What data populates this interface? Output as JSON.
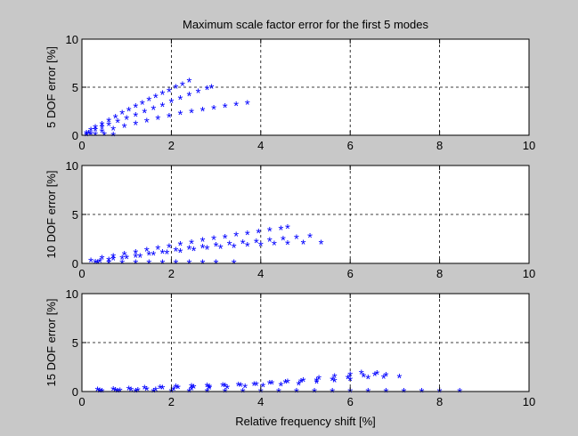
{
  "title": "Maximum scale factor error for the first 5 modes",
  "xlabel": "Relative frequency shift [%]",
  "marker_color": "#0000ff",
  "background_color": "#c8c8c8",
  "axes_color": "#ffffff",
  "chart_data": [
    {
      "type": "scatter",
      "marker": "*",
      "ylabel": "5 DOF error [%]",
      "xlim": [
        0,
        10
      ],
      "ylim": [
        0,
        10
      ],
      "xticks": [
        0,
        2,
        4,
        6,
        8,
        10
      ],
      "yticks": [
        0,
        5,
        10
      ],
      "grid": true,
      "points": [
        [
          0.1,
          0.2
        ],
        [
          0.2,
          0.5
        ],
        [
          0.3,
          0.8
        ],
        [
          0.45,
          1.1
        ],
        [
          0.6,
          1.5
        ],
        [
          0.75,
          1.85
        ],
        [
          0.9,
          2.25
        ],
        [
          1.05,
          2.6
        ],
        [
          1.2,
          2.95
        ],
        [
          1.35,
          3.3
        ],
        [
          1.5,
          3.65
        ],
        [
          1.65,
          4.0
        ],
        [
          1.8,
          4.3
        ],
        [
          1.95,
          4.6
        ],
        [
          2.1,
          4.95
        ],
        [
          2.25,
          5.25
        ],
        [
          2.4,
          5.6
        ],
        [
          0.15,
          0.2
        ],
        [
          0.3,
          0.5
        ],
        [
          0.45,
          0.8
        ],
        [
          0.6,
          1.05
        ],
        [
          0.8,
          1.4
        ],
        [
          1.0,
          1.7
        ],
        [
          1.2,
          2.05
        ],
        [
          1.4,
          2.4
        ],
        [
          1.6,
          2.75
        ],
        [
          1.8,
          3.05
        ],
        [
          2.0,
          3.45
        ],
        [
          2.2,
          3.8
        ],
        [
          2.4,
          4.15
        ],
        [
          2.6,
          4.5
        ],
        [
          2.8,
          4.8
        ],
        [
          2.9,
          4.95
        ],
        [
          0.2,
          0.1
        ],
        [
          0.45,
          0.35
        ],
        [
          0.7,
          0.6
        ],
        [
          0.95,
          0.9
        ],
        [
          1.2,
          1.15
        ],
        [
          1.45,
          1.45
        ],
        [
          1.7,
          1.7
        ],
        [
          1.95,
          1.95
        ],
        [
          2.2,
          2.2
        ],
        [
          2.45,
          2.4
        ],
        [
          2.7,
          2.6
        ],
        [
          2.95,
          2.8
        ],
        [
          3.2,
          2.95
        ],
        [
          3.45,
          3.15
        ],
        [
          3.7,
          3.3
        ],
        [
          0.1,
          0.0
        ],
        [
          0.3,
          0.05
        ],
        [
          0.5,
          0.05
        ],
        [
          0.7,
          0.0
        ]
      ]
    },
    {
      "type": "scatter",
      "marker": "*",
      "ylabel": "10 DOF error [%]",
      "xlim": [
        0,
        10
      ],
      "ylim": [
        0,
        10
      ],
      "xticks": [
        0,
        2,
        4,
        6,
        8,
        10
      ],
      "yticks": [
        0,
        5,
        10
      ],
      "grid": true,
      "points": [
        [
          0.2,
          0.25
        ],
        [
          0.45,
          0.5
        ],
        [
          0.7,
          0.7
        ],
        [
          0.95,
          0.9
        ],
        [
          1.2,
          1.1
        ],
        [
          1.45,
          1.3
        ],
        [
          1.7,
          1.5
        ],
        [
          1.95,
          1.7
        ],
        [
          2.2,
          1.9
        ],
        [
          2.45,
          2.1
        ],
        [
          2.7,
          2.3
        ],
        [
          2.95,
          2.5
        ],
        [
          3.2,
          2.65
        ],
        [
          3.45,
          2.85
        ],
        [
          3.7,
          3.0
        ],
        [
          3.95,
          3.2
        ],
        [
          4.2,
          3.35
        ],
        [
          4.45,
          3.5
        ],
        [
          4.6,
          3.65
        ],
        [
          0.3,
          0.1
        ],
        [
          0.6,
          0.3
        ],
        [
          0.9,
          0.5
        ],
        [
          1.2,
          0.7
        ],
        [
          1.5,
          0.9
        ],
        [
          1.8,
          1.1
        ],
        [
          2.1,
          1.3
        ],
        [
          2.4,
          1.5
        ],
        [
          2.7,
          1.65
        ],
        [
          3.0,
          1.8
        ],
        [
          3.3,
          1.95
        ],
        [
          3.6,
          2.1
        ],
        [
          3.9,
          2.2
        ],
        [
          4.2,
          2.3
        ],
        [
          4.5,
          2.45
        ],
        [
          4.8,
          2.6
        ],
        [
          5.1,
          2.75
        ],
        [
          0.4,
          0.2
        ],
        [
          0.7,
          0.4
        ],
        [
          1.0,
          0.55
        ],
        [
          1.3,
          0.7
        ],
        [
          1.6,
          0.9
        ],
        [
          1.9,
          1.05
        ],
        [
          2.2,
          1.2
        ],
        [
          2.5,
          1.35
        ],
        [
          2.8,
          1.5
        ],
        [
          3.1,
          1.6
        ],
        [
          3.4,
          1.7
        ],
        [
          3.7,
          1.8
        ],
        [
          4.0,
          1.85
        ],
        [
          4.3,
          1.95
        ],
        [
          4.6,
          2.0
        ],
        [
          4.95,
          2.05
        ],
        [
          5.35,
          2.05
        ],
        [
          0.35,
          0.05
        ],
        [
          0.6,
          0.05
        ],
        [
          0.9,
          0.05
        ],
        [
          1.2,
          0.05
        ],
        [
          1.5,
          0.05
        ],
        [
          1.8,
          0.05
        ],
        [
          2.1,
          0.05
        ],
        [
          2.4,
          0.05
        ],
        [
          2.7,
          0.05
        ],
        [
          3.0,
          0.05
        ],
        [
          3.4,
          0.05
        ]
      ]
    },
    {
      "type": "scatter",
      "marker": "*",
      "ylabel": "15 DOF error [%]",
      "xlim": [
        0,
        10
      ],
      "ylim": [
        0,
        10
      ],
      "xticks": [
        0,
        2,
        4,
        6,
        8,
        10
      ],
      "yticks": [
        0,
        5,
        10
      ],
      "grid": true,
      "points": [
        [
          0.35,
          0.15
        ],
        [
          0.7,
          0.2
        ],
        [
          1.05,
          0.25
        ],
        [
          1.4,
          0.3
        ],
        [
          1.75,
          0.35
        ],
        [
          2.1,
          0.45
        ],
        [
          2.45,
          0.5
        ],
        [
          2.8,
          0.55
        ],
        [
          3.15,
          0.6
        ],
        [
          3.5,
          0.65
        ],
        [
          3.85,
          0.7
        ],
        [
          4.2,
          0.8
        ],
        [
          4.55,
          0.9
        ],
        [
          4.9,
          1.0
        ],
        [
          5.25,
          1.1
        ],
        [
          5.6,
          1.2
        ],
        [
          5.95,
          1.35
        ],
        [
          6.3,
          1.55
        ],
        [
          6.55,
          1.7
        ],
        [
          0.4,
          0.05
        ],
        [
          0.75,
          0.1
        ],
        [
          1.1,
          0.15
        ],
        [
          1.45,
          0.2
        ],
        [
          1.8,
          0.3
        ],
        [
          2.15,
          0.35
        ],
        [
          2.5,
          0.4
        ],
        [
          2.85,
          0.45
        ],
        [
          3.2,
          0.55
        ],
        [
          3.55,
          0.6
        ],
        [
          3.9,
          0.7
        ],
        [
          4.25,
          0.8
        ],
        [
          4.6,
          0.95
        ],
        [
          4.95,
          1.1
        ],
        [
          5.3,
          1.3
        ],
        [
          5.65,
          1.5
        ],
        [
          6.0,
          1.7
        ],
        [
          6.25,
          1.85
        ],
        [
          6.6,
          1.8
        ],
        [
          6.8,
          1.65
        ],
        [
          0.45,
          0.0
        ],
        [
          0.85,
          0.05
        ],
        [
          1.25,
          0.1
        ],
        [
          1.65,
          0.15
        ],
        [
          2.05,
          0.2
        ],
        [
          2.45,
          0.25
        ],
        [
          2.85,
          0.3
        ],
        [
          3.25,
          0.35
        ],
        [
          3.65,
          0.45
        ],
        [
          4.05,
          0.55
        ],
        [
          4.45,
          0.65
        ],
        [
          4.85,
          0.75
        ],
        [
          5.25,
          0.9
        ],
        [
          5.65,
          1.05
        ],
        [
          6.0,
          1.2
        ],
        [
          6.4,
          1.35
        ],
        [
          6.75,
          1.4
        ],
        [
          7.1,
          1.45
        ],
        [
          0.4,
          0.0
        ],
        [
          0.8,
          0.0
        ],
        [
          1.2,
          0.0
        ],
        [
          1.6,
          0.0
        ],
        [
          2.0,
          0.0
        ],
        [
          2.4,
          0.0
        ],
        [
          2.8,
          0.0
        ],
        [
          3.2,
          0.0
        ],
        [
          3.6,
          0.0
        ],
        [
          4.0,
          0.0
        ],
        [
          4.4,
          0.0
        ],
        [
          4.8,
          0.0
        ],
        [
          5.2,
          0.0
        ],
        [
          5.6,
          0.0
        ],
        [
          6.0,
          0.0
        ],
        [
          6.4,
          0.0
        ],
        [
          6.8,
          0.0
        ],
        [
          7.2,
          0.0
        ],
        [
          7.6,
          0.0
        ],
        [
          8.0,
          0.0
        ],
        [
          8.45,
          0.0
        ]
      ]
    }
  ]
}
